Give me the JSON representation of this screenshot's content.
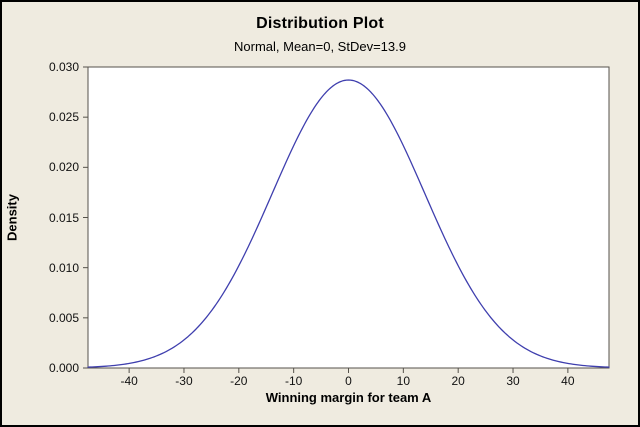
{
  "chart_data": {
    "type": "line",
    "title": "Distribution Plot",
    "subtitle": "Normal, Mean=0, StDev=13.9",
    "distribution": "Normal",
    "mean": 0,
    "stdev": 13.9,
    "xlabel": "Winning margin for team A",
    "ylabel": "Density",
    "xlim": [
      -47.5,
      47.5
    ],
    "ylim": [
      0,
      0.03
    ],
    "x_ticks": [
      -40,
      -30,
      -20,
      -10,
      0,
      10,
      20,
      30,
      40
    ],
    "y_ticks": [
      "0.000",
      "0.005",
      "0.010",
      "0.015",
      "0.020",
      "0.025",
      "0.030"
    ],
    "grid": false,
    "legend": "none",
    "sample_points": {
      "x": [
        -45,
        -40,
        -35,
        -30,
        -25,
        -20,
        -15,
        -10,
        -5,
        0,
        5,
        10,
        15,
        20,
        25,
        30,
        35,
        40,
        45
      ],
      "y": [
        0.00015,
        0.00046,
        0.0012,
        0.0028,
        0.00569,
        0.0102,
        0.01603,
        0.02216,
        0.0269,
        0.0287,
        0.0269,
        0.02216,
        0.01603,
        0.0102,
        0.00569,
        0.0028,
        0.0012,
        0.00046,
        0.00015
      ]
    },
    "colors": {
      "curve": "#3F3FAE",
      "background": "#EFEBE0",
      "plot_background": "#FFFFFF",
      "frame": "#55524B",
      "text": "#000000"
    }
  }
}
